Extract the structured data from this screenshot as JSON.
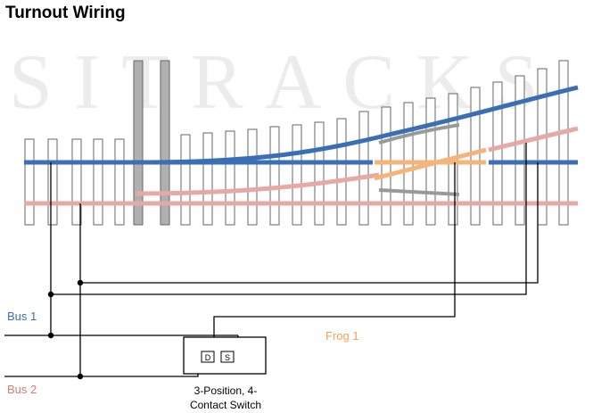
{
  "title": "Turnout Wiring",
  "watermark": "SITRACKS",
  "labels": {
    "bus1": "Bus 1",
    "bus2": "Bus 2",
    "frog": "Frog 1",
    "switch_caption_line1": "3-Position, 4-",
    "switch_caption_line2": "Contact Switch",
    "contact_d": "D",
    "contact_s": "S"
  },
  "colors": {
    "bus1_rail": "#3a6fb5",
    "bus2_rail": "#e6a9a5",
    "frog": "#f5b57a",
    "wire": "#000000",
    "tie_fill": "#ffffff",
    "long_tie_fill": "#b0b0b0"
  }
}
